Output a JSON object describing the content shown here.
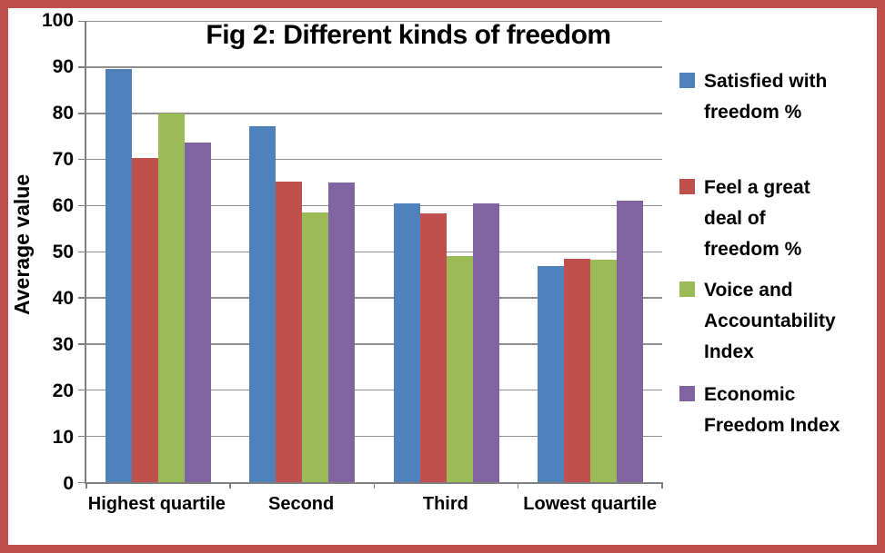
{
  "frame": {
    "border_color": "#C0504D",
    "background_color": "#FFFFFF"
  },
  "chart_data": {
    "type": "bar",
    "title": "Fig 2: Different kinds of freedom",
    "xlabel": "",
    "ylabel": "Average value",
    "ylim": [
      0,
      100
    ],
    "y_ticks": [
      0,
      10,
      20,
      30,
      40,
      50,
      60,
      70,
      80,
      90,
      100
    ],
    "grid": true,
    "legend_position": "right",
    "axis_color": "#7F7F7F",
    "gridline_color": "#8F8F8F",
    "categories": [
      "Highest quartile",
      "Second",
      "Third",
      "Lowest quartile"
    ],
    "series": [
      {
        "name": "Satisfied with freedom %",
        "legend_lines": [
          "Satisfied with",
          "freedom %"
        ],
        "color": "#4F81BD",
        "values": [
          89.5,
          77.2,
          60.5,
          46.8
        ]
      },
      {
        "name": "Feel a great deal of freedom %",
        "legend_lines": [
          "Feel a great",
          "deal of",
          "freedom %"
        ],
        "color": "#C0504D",
        "values": [
          70.3,
          65.2,
          58.3,
          48.5
        ]
      },
      {
        "name": "Voice and Accountability Index",
        "legend_lines": [
          "Voice and",
          "Accountability",
          "Index"
        ],
        "color": "#9BBB59",
        "values": [
          80.0,
          58.4,
          49.1,
          48.2
        ]
      },
      {
        "name": "Economic Freedom Index",
        "legend_lines": [
          "Economic",
          "Freedom Index"
        ],
        "color": "#8064A2",
        "values": [
          73.7,
          64.9,
          60.5,
          61.0
        ]
      }
    ]
  }
}
